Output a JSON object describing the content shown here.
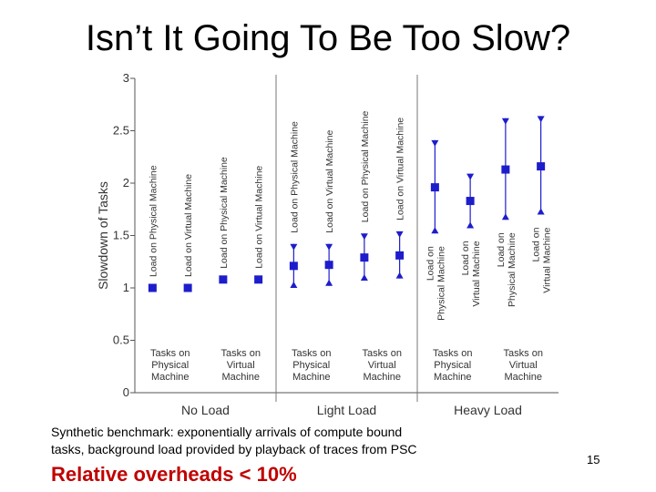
{
  "slide": {
    "title": "Isn’t It Going To Be Too Slow?",
    "caption_line1": "Synthetic benchmark: exponentially arrivals of compute bound",
    "caption_line2": "tasks, background load provided by playback of traces from PSC",
    "highlight": "Relative overheads < 10%",
    "page_number": "15"
  },
  "chart_data": {
    "type": "scatter",
    "ylabel": "Slowdown of Tasks",
    "ylim": [
      0,
      3
    ],
    "y_ticks": [
      "0",
      "0.5",
      "1",
      "1.5",
      "2",
      "2.5",
      "3"
    ],
    "groups": [
      {
        "label": "No Load",
        "bottom_labels": [
          [
            "Tasks on",
            "Physical",
            "Machine"
          ],
          [
            "Tasks on",
            "Virtual",
            "Machine"
          ]
        ],
        "points": [
          {
            "series": "Load on Physical Machine",
            "y": 1.0,
            "low": null,
            "high": null
          },
          {
            "series": "Load on Virtual Machine",
            "y": 1.0,
            "low": null,
            "high": null
          },
          {
            "series": "Load on Physical Machine",
            "y": 1.08,
            "low": null,
            "high": null
          },
          {
            "series": "Load on Virtual Machine",
            "y": 1.08,
            "low": null,
            "high": null
          }
        ]
      },
      {
        "label": "Light Load",
        "bottom_labels": [
          [
            "Tasks on",
            "Physical",
            "Machine"
          ],
          [
            "Tasks on",
            "Virtual",
            "Machine"
          ]
        ],
        "points": [
          {
            "series": "Load on Physical Machine",
            "y": 1.21,
            "low": 1.0,
            "high": 1.42
          },
          {
            "series": "Load on Virtual Machine",
            "y": 1.22,
            "low": 1.02,
            "high": 1.42
          },
          {
            "series": "Load on Physical Machine",
            "y": 1.29,
            "low": 1.07,
            "high": 1.52
          },
          {
            "series": "Load on Virtual Machine",
            "y": 1.31,
            "low": 1.09,
            "high": 1.54
          }
        ]
      },
      {
        "label": "Heavy Load",
        "bottom_labels": [
          [
            "Tasks on",
            "Physical",
            "Machine"
          ],
          [
            "Tasks on",
            "Virtual",
            "Machine"
          ]
        ],
        "points": [
          {
            "series": "Load on Physical Machine",
            "y": 1.96,
            "low": 1.52,
            "high": 2.41
          },
          {
            "series": "Load on Virtual Machine",
            "y": 1.83,
            "low": 1.57,
            "high": 2.09
          },
          {
            "series": "Load on Physical Machine",
            "y": 2.13,
            "low": 1.65,
            "high": 2.62
          },
          {
            "series": "Load on Virtual Machine",
            "y": 2.16,
            "low": 1.7,
            "high": 2.64
          }
        ]
      }
    ],
    "marker_color": "#1d1dcc",
    "grid": false,
    "legend": "none"
  }
}
